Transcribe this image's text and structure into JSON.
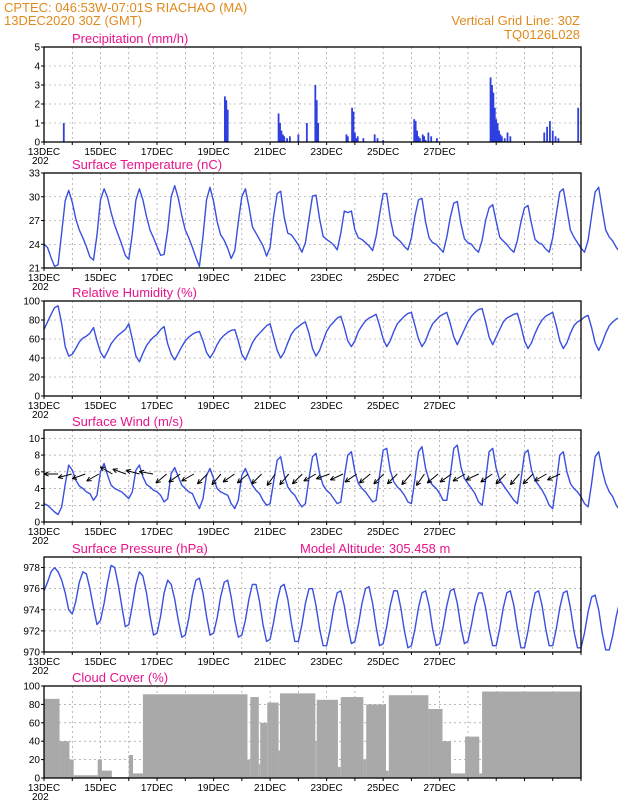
{
  "header": {
    "line1_left": "CPTEC:   046:53W-07:01S   RIACHAO (MA)",
    "line2_left": "13DEC2020 30Z (GMT)",
    "line2_right": "Vertical Grid Line: 30Z",
    "line3_right": "TQ0126L028"
  },
  "colors": {
    "series": "#3a4fe0",
    "header": "#e08a1e",
    "title": "#e8148c",
    "cloud": "#a9a9a9",
    "bar": "#2f3fe0"
  },
  "x_tick_labels": [
    "13DEC",
    "15DEC",
    "17DEC",
    "19DEC",
    "21DEC",
    "23DEC",
    "25DEC",
    "27DEC"
  ],
  "x_year_fragment": "202",
  "chart_data": [
    {
      "type": "bar",
      "title": "Precipitation (mm/h)",
      "ylim": [
        0,
        5
      ],
      "yticks": [
        0,
        1,
        2,
        3,
        4,
        5
      ],
      "grid": true,
      "x_units": "days since 13DEC 30Z",
      "x": [
        0.7,
        6.4,
        6.45,
        6.5,
        8.3,
        8.35,
        8.4,
        8.45,
        8.5,
        8.6,
        8.7,
        9.0,
        9.3,
        9.6,
        9.65,
        9.7,
        10.7,
        10.75,
        10.9,
        10.95,
        11.0,
        11.05,
        11.1,
        11.3,
        11.7,
        11.8,
        12.0,
        13.1,
        13.15,
        13.2,
        13.25,
        13.3,
        13.4,
        13.45,
        13.5,
        13.6,
        13.7,
        13.9,
        15.8,
        15.85,
        15.9,
        15.95,
        16.0,
        16.05,
        16.1,
        16.15,
        16.2,
        16.3,
        16.4,
        16.5,
        17.7,
        17.8,
        17.9,
        18.0,
        18.1,
        18.2,
        18.9
      ],
      "values": [
        1.0,
        2.4,
        2.2,
        1.7,
        1.5,
        1.0,
        0.6,
        0.4,
        0.3,
        0.2,
        0.3,
        0.4,
        1.0,
        3.0,
        2.2,
        1.0,
        0.4,
        0.3,
        1.8,
        1.6,
        0.5,
        0.2,
        0.3,
        0.2,
        0.4,
        0.2,
        0.1,
        1.2,
        1.1,
        0.6,
        0.3,
        0.2,
        0.4,
        0.3,
        0.1,
        0.5,
        0.3,
        0.2,
        3.4,
        3.0,
        2.6,
        1.8,
        1.2,
        1.0,
        0.6,
        0.4,
        0.3,
        0.2,
        0.5,
        0.3,
        0.5,
        0.8,
        1.1,
        0.6,
        0.3,
        0.2,
        1.8
      ]
    },
    {
      "type": "line",
      "title": "Surface Temperature (nC)",
      "ylim": [
        21,
        33
      ],
      "yticks": [
        21,
        24,
        27,
        30,
        33
      ],
      "grid": true,
      "t_step_hours": 3,
      "values": [
        24,
        23.6,
        22.3,
        21.2,
        21.4,
        25.5,
        29.5,
        30.8,
        29.3,
        27.2,
        25.8,
        24.8,
        23.7,
        22.4,
        22.0,
        25.2,
        29.6,
        31.0,
        29.9,
        28.0,
        26.4,
        25.2,
        24.0,
        22.6,
        22.1,
        25.3,
        29.6,
        31.0,
        29.6,
        27.5,
        25.8,
        24.8,
        23.7,
        22.6,
        22.7,
        25.8,
        30.0,
        31.4,
        29.8,
        27.6,
        25.8,
        24.8,
        23.6,
        22.3,
        21.2,
        25.0,
        29.6,
        31.2,
        29.4,
        26.9,
        25.2,
        24.5,
        23.5,
        22.2,
        23.2,
        26.8,
        30.0,
        31.0,
        28.8,
        26.2,
        25.4,
        24.6,
        23.8,
        22.5,
        23.6,
        27.5,
        30.4,
        30.7,
        27.4,
        25.4,
        25.2,
        24.6,
        23.9,
        23.0,
        24.2,
        27.2,
        30.1,
        30.2,
        27.2,
        25.0,
        24.6,
        24.3,
        23.9,
        23.3,
        25.4,
        28.2,
        28.0,
        28.2,
        25.8,
        24.8,
        24.6,
        24.2,
        23.8,
        23.2,
        25.0,
        27.8,
        30.4,
        30.4,
        27.3,
        25.1,
        24.7,
        24.3,
        23.7,
        23.3,
        24.8,
        27.6,
        29.6,
        29.8,
        26.8,
        24.8,
        24.2,
        24.0,
        23.5,
        23.0,
        24.9,
        27.4,
        29.2,
        29.4,
        26.6,
        24.7,
        24.2,
        24.0,
        23.4,
        23.0,
        24.5,
        27.0,
        28.6,
        29.0,
        26.9,
        24.9,
        24.4,
        24.0,
        23.4,
        23.0,
        24.5,
        26.8,
        28.6,
        28.9,
        26.6,
        24.6,
        24.2,
        24.0,
        23.4,
        23.0,
        24.8,
        27.8,
        30.6,
        31.0,
        28.4,
        25.8,
        24.9,
        24.2,
        23.5,
        23.0,
        24.5,
        27.6,
        30.6,
        31.2,
        28.4,
        25.8,
        24.9,
        24.4,
        23.6,
        23.0,
        25.0,
        28.5,
        31.2,
        30.4,
        29.5,
        29.0
      ]
    },
    {
      "type": "line",
      "title": "Relative Humidity (%)",
      "ylim": [
        0,
        100
      ],
      "yticks": [
        0,
        20,
        40,
        60,
        80,
        100
      ],
      "grid": true,
      "t_step_hours": 3,
      "values": [
        70,
        78,
        86,
        93,
        95,
        76,
        52,
        42,
        44,
        50,
        57,
        61,
        63,
        66,
        72,
        58,
        46,
        40,
        47,
        55,
        60,
        64,
        67,
        70,
        76,
        60,
        42,
        36,
        45,
        53,
        58,
        62,
        65,
        70,
        73,
        55,
        44,
        38,
        45,
        52,
        58,
        62,
        65,
        67,
        68,
        58,
        46,
        40,
        46,
        54,
        60,
        64,
        67,
        69,
        70,
        58,
        44,
        38,
        47,
        56,
        62,
        66,
        70,
        74,
        76,
        62,
        48,
        40,
        46,
        56,
        65,
        70,
        73,
        76,
        78,
        66,
        50,
        42,
        48,
        58,
        68,
        74,
        78,
        82,
        84,
        72,
        58,
        52,
        58,
        68,
        74,
        79,
        82,
        84,
        86,
        74,
        60,
        52,
        58,
        68,
        76,
        80,
        84,
        87,
        88,
        74,
        60,
        52,
        58,
        68,
        76,
        80,
        84,
        86,
        88,
        76,
        62,
        54,
        62,
        70,
        78,
        84,
        88,
        91,
        92,
        78,
        62,
        54,
        62,
        70,
        78,
        82,
        84,
        86,
        87,
        74,
        58,
        50,
        56,
        66,
        74,
        80,
        84,
        86,
        88,
        74,
        58,
        50,
        56,
        66,
        74,
        78,
        80,
        83,
        85,
        72,
        56,
        48,
        56,
        66,
        74,
        78,
        81,
        83,
        84,
        68,
        56,
        62,
        60,
        62,
        62
      ]
    },
    {
      "type": "line",
      "title": "Surface Wind (m/s)",
      "ylim": [
        0,
        11
      ],
      "yticks": [
        0,
        2,
        4,
        6,
        8,
        10
      ],
      "grid": true,
      "t_step_hours": 3,
      "values": [
        2.2,
        2.0,
        1.6,
        1.2,
        0.9,
        1.8,
        4.5,
        6.8,
        6.2,
        5.0,
        4.3,
        4.0,
        3.6,
        3.4,
        2.6,
        3.2,
        6.0,
        7.0,
        5.6,
        4.4,
        4.0,
        3.8,
        3.6,
        3.2,
        2.8,
        3.6,
        6.2,
        6.8,
        5.4,
        4.5,
        4.2,
        3.8,
        3.6,
        3.2,
        2.4,
        2.8,
        5.8,
        6.5,
        5.4,
        4.4,
        4.0,
        3.6,
        3.4,
        2.4,
        1.6,
        2.8,
        5.6,
        6.4,
        5.2,
        4.0,
        3.6,
        3.4,
        3.2,
        2.2,
        1.6,
        2.6,
        5.6,
        6.4,
        5.4,
        4.4,
        3.8,
        3.4,
        2.6,
        2.0,
        2.2,
        4.8,
        7.4,
        7.8,
        5.6,
        4.2,
        3.6,
        3.2,
        2.4,
        1.8,
        2.2,
        5.2,
        7.8,
        8.2,
        5.8,
        4.4,
        3.8,
        3.4,
        2.8,
        2.2,
        2.4,
        5.4,
        8.0,
        8.4,
        6.0,
        4.6,
        4.0,
        3.6,
        3.0,
        2.4,
        2.6,
        5.6,
        8.6,
        8.8,
        6.2,
        4.8,
        4.2,
        3.8,
        3.2,
        2.4,
        2.2,
        5.2,
        8.4,
        9.0,
        6.4,
        5.0,
        4.4,
        4.0,
        3.4,
        2.6,
        2.6,
        5.6,
        8.8,
        9.2,
        6.6,
        5.2,
        4.6,
        4.0,
        3.4,
        2.4,
        2.0,
        5.0,
        8.4,
        8.8,
        6.4,
        5.0,
        4.4,
        3.8,
        3.2,
        2.6,
        2.2,
        5.0,
        8.2,
        8.6,
        6.2,
        5.0,
        4.4,
        3.8,
        3.0,
        2.0,
        1.6,
        4.6,
        8.0,
        8.4,
        6.0,
        4.6,
        4.0,
        3.6,
        3.0,
        2.2,
        1.8,
        4.6,
        7.8,
        8.4,
        6.2,
        4.6,
        3.6,
        3.0,
        2.0,
        1.4,
        2.0
      ]
    },
    {
      "type": "line",
      "title": "Surface Pressure (hPa)",
      "annotation": "Model Altitude: 305.458  m",
      "ylim": [
        970,
        979
      ],
      "yticks": [
        970,
        972,
        974,
        976,
        978
      ],
      "grid": true,
      "t_step_hours": 3,
      "values": [
        975.8,
        976.6,
        977.6,
        978.0,
        977.6,
        976.8,
        975.6,
        974.0,
        973.6,
        974.8,
        976.6,
        977.6,
        977.4,
        976.0,
        974.2,
        972.6,
        973.0,
        974.6,
        976.6,
        978.2,
        978.0,
        976.4,
        974.4,
        972.4,
        972.6,
        974.4,
        976.4,
        977.6,
        977.2,
        975.6,
        973.4,
        971.6,
        971.8,
        973.4,
        975.6,
        976.8,
        976.4,
        975.0,
        973.0,
        971.4,
        971.6,
        973.2,
        975.4,
        976.8,
        977.0,
        975.6,
        973.4,
        971.6,
        971.8,
        973.2,
        975.2,
        976.6,
        976.8,
        975.2,
        973.0,
        971.4,
        971.6,
        973.0,
        975.0,
        976.4,
        976.4,
        974.8,
        972.6,
        971.0,
        971.2,
        972.8,
        974.8,
        976.2,
        976.4,
        975.0,
        972.8,
        971.0,
        971.0,
        972.6,
        974.6,
        976.0,
        976.0,
        974.4,
        972.2,
        970.6,
        970.6,
        972.2,
        974.2,
        975.6,
        975.8,
        974.4,
        972.4,
        970.8,
        971.0,
        972.6,
        974.6,
        976.0,
        976.2,
        974.6,
        972.4,
        970.6,
        970.8,
        972.4,
        974.4,
        975.8,
        975.8,
        974.2,
        972.0,
        970.4,
        970.6,
        972.2,
        974.2,
        975.6,
        975.8,
        974.4,
        972.2,
        970.6,
        970.8,
        972.4,
        974.4,
        975.8,
        976.0,
        974.6,
        972.4,
        970.8,
        971.0,
        972.6,
        974.4,
        975.6,
        975.6,
        974.2,
        972.2,
        970.6,
        970.6,
        972.2,
        974.2,
        975.6,
        975.8,
        974.4,
        972.2,
        970.4,
        970.4,
        972.0,
        974.0,
        975.6,
        975.8,
        974.4,
        972.2,
        970.6,
        970.6,
        972.2,
        974.2,
        975.6,
        975.8,
        974.2,
        972.0,
        970.4,
        970.4,
        971.8,
        973.8,
        975.2,
        975.4,
        974.0,
        971.8,
        970.2,
        970.2,
        971.6,
        973.4,
        974.8,
        975.0,
        973.6,
        971.6,
        970.2,
        970.2,
        972.0
      ]
    },
    {
      "type": "bar",
      "title": "Cloud Cover (%)",
      "ylim": [
        0,
        100
      ],
      "yticks": [
        0,
        20,
        40,
        60,
        80,
        100
      ],
      "grid": true,
      "x_units": "days since 13DEC 30Z",
      "segments": [
        {
          "x": [
            0.0,
            0.55
          ],
          "level": 86
        },
        {
          "x": [
            0.55,
            0.9
          ],
          "level": 40
        },
        {
          "x": [
            0.9,
            1.05
          ],
          "level": 20
        },
        {
          "x": [
            1.05,
            1.9
          ],
          "level": 3
        },
        {
          "x": [
            1.9,
            2.05
          ],
          "level": 20
        },
        {
          "x": [
            2.05,
            2.4
          ],
          "level": 8
        },
        {
          "x": [
            2.4,
            3.0
          ],
          "level": 1
        },
        {
          "x": [
            3.0,
            3.15
          ],
          "level": 25
        },
        {
          "x": [
            3.15,
            3.5
          ],
          "level": 5
        },
        {
          "x": [
            3.5,
            7.2
          ],
          "level": 91
        },
        {
          "x": [
            7.2,
            7.3
          ],
          "level": 20
        },
        {
          "x": [
            7.3,
            7.6
          ],
          "level": 88
        },
        {
          "x": [
            7.6,
            7.65
          ],
          "level": 15
        },
        {
          "x": [
            7.65,
            7.9
          ],
          "level": 60
        },
        {
          "x": [
            7.9,
            8.3
          ],
          "level": 82
        },
        {
          "x": [
            8.3,
            8.35
          ],
          "level": 30
        },
        {
          "x": [
            8.35,
            9.6
          ],
          "level": 92
        },
        {
          "x": [
            9.6,
            9.65
          ],
          "level": 40
        },
        {
          "x": [
            9.65,
            10.4
          ],
          "level": 85
        },
        {
          "x": [
            10.4,
            10.5
          ],
          "level": 12
        },
        {
          "x": [
            10.5,
            11.3
          ],
          "level": 88
        },
        {
          "x": [
            11.3,
            11.4
          ],
          "level": 20
        },
        {
          "x": [
            11.4,
            12.1
          ],
          "level": 80
        },
        {
          "x": [
            12.1,
            12.2
          ],
          "level": 8
        },
        {
          "x": [
            12.2,
            13.6
          ],
          "level": 90
        },
        {
          "x": [
            13.6,
            14.1
          ],
          "level": 75
        },
        {
          "x": [
            14.1,
            14.4
          ],
          "level": 40
        },
        {
          "x": [
            14.4,
            14.9
          ],
          "level": 5
        },
        {
          "x": [
            14.9,
            15.4
          ],
          "level": 45
        },
        {
          "x": [
            15.4,
            15.5
          ],
          "level": 5
        },
        {
          "x": [
            15.5,
            19.0
          ],
          "level": 94
        }
      ]
    }
  ]
}
